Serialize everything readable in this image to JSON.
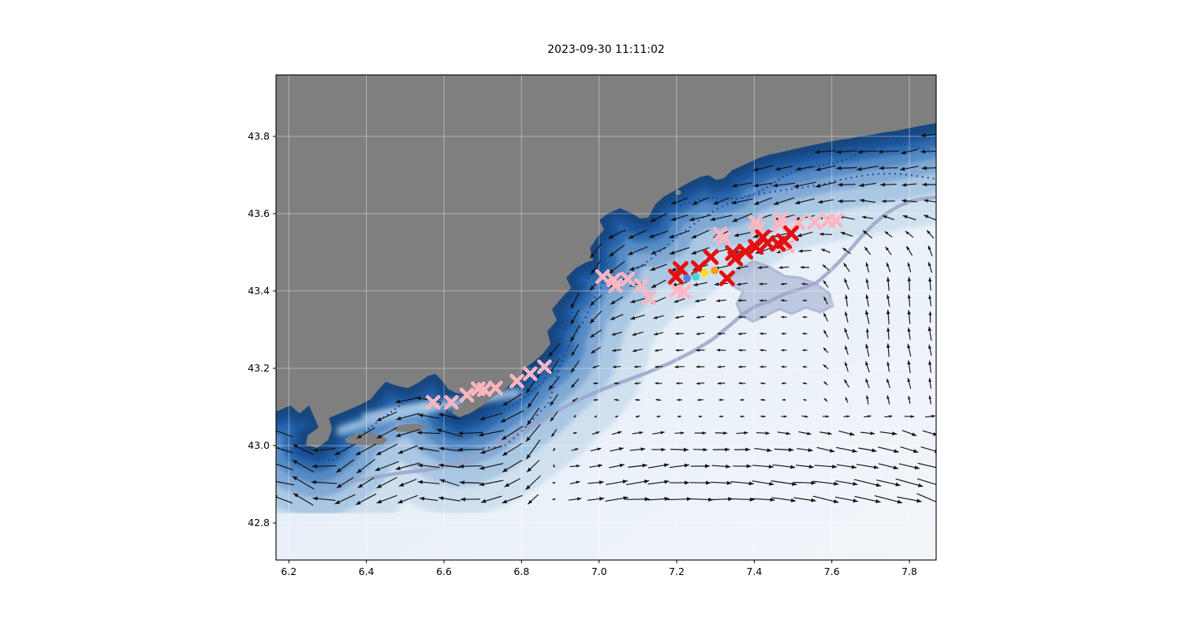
{
  "figure": {
    "title": "2023-09-30 11:11:02"
  },
  "chart_data": {
    "type": "scatter",
    "title": "2023-09-30 11:11:02",
    "xlabel": "",
    "ylabel": "",
    "xlim": [
      6.167,
      7.869
    ],
    "ylim": [
      42.704,
      43.959
    ],
    "xticks": [
      6.2,
      6.4,
      6.6,
      6.8,
      7.0,
      7.2,
      7.4,
      7.6,
      7.8
    ],
    "yticks": [
      42.8,
      43.0,
      43.2,
      43.4,
      43.6,
      43.8
    ],
    "grid": true,
    "legend": "none",
    "background": {
      "land_color": "#7f7f7f",
      "sea_nearshore_color": "#16477f",
      "sea_offshore_color": "#f2f6fb",
      "contour_navy_color": "#1d3fa3",
      "contour_slate_color": "#9aa6c9",
      "quiver_color": "#111111",
      "quiver_description": "black surface-current arrows on a regular grid over the sea, westward jet along the coast, eastward flow in the south, northward flow at the east side"
    },
    "series": [
      {
        "name": "pink-x-trail-southwest",
        "marker": "x",
        "color": "#ffb6c1",
        "points": [
          [
            6.572,
            43.112
          ],
          [
            6.619,
            43.112
          ],
          [
            6.659,
            43.131
          ],
          [
            6.688,
            43.147
          ],
          [
            6.704,
            43.145
          ],
          [
            6.733,
            43.149
          ],
          [
            6.788,
            43.167
          ],
          [
            6.822,
            43.186
          ],
          [
            6.859,
            43.204
          ]
        ]
      },
      {
        "name": "pink-x-trail-mid",
        "marker": "x",
        "color": "#ffb6c1",
        "points": [
          [
            7.009,
            43.437
          ],
          [
            7.038,
            43.429
          ],
          [
            7.042,
            43.414
          ],
          [
            7.074,
            43.431
          ],
          [
            7.109,
            43.414
          ],
          [
            7.129,
            43.382
          ],
          [
            7.2,
            43.402
          ],
          [
            7.219,
            43.398
          ]
        ]
      },
      {
        "name": "pink-x-cluster-northeast",
        "marker": "x",
        "color": "#ffb6c1",
        "points": [
          [
            7.312,
            43.547
          ],
          [
            7.322,
            43.537
          ],
          [
            7.404,
            43.578
          ],
          [
            7.41,
            43.561
          ],
          [
            7.465,
            43.571
          ],
          [
            7.469,
            43.586
          ],
          [
            7.513,
            43.576
          ],
          [
            7.556,
            43.578
          ],
          [
            7.59,
            43.582
          ],
          [
            7.611,
            43.582
          ],
          [
            7.467,
            43.52
          ],
          [
            7.485,
            43.516
          ]
        ]
      },
      {
        "name": "red-x-cluster",
        "marker": "x",
        "color": "#e31010",
        "points": [
          [
            7.198,
            43.437
          ],
          [
            7.21,
            43.457
          ],
          [
            7.257,
            43.459
          ],
          [
            7.288,
            43.488
          ],
          [
            7.33,
            43.433
          ],
          [
            7.345,
            43.498
          ],
          [
            7.351,
            43.484
          ],
          [
            7.377,
            43.502
          ],
          [
            7.404,
            43.514
          ],
          [
            7.422,
            43.539
          ],
          [
            7.434,
            43.524
          ],
          [
            7.461,
            43.522
          ],
          [
            7.477,
            43.529
          ],
          [
            7.495,
            43.549
          ]
        ]
      },
      {
        "name": "colored-dots",
        "marker": "o",
        "points": [
          {
            "lon": 7.227,
            "lat": 43.433,
            "color": "#5580e0"
          },
          {
            "lon": 7.249,
            "lat": 43.437,
            "color": "#3fd8d4"
          },
          {
            "lon": 7.272,
            "lat": 43.447,
            "color": "#ffe014"
          },
          {
            "lon": 7.298,
            "lat": 43.453,
            "color": "#ff9d1e"
          }
        ]
      }
    ]
  }
}
